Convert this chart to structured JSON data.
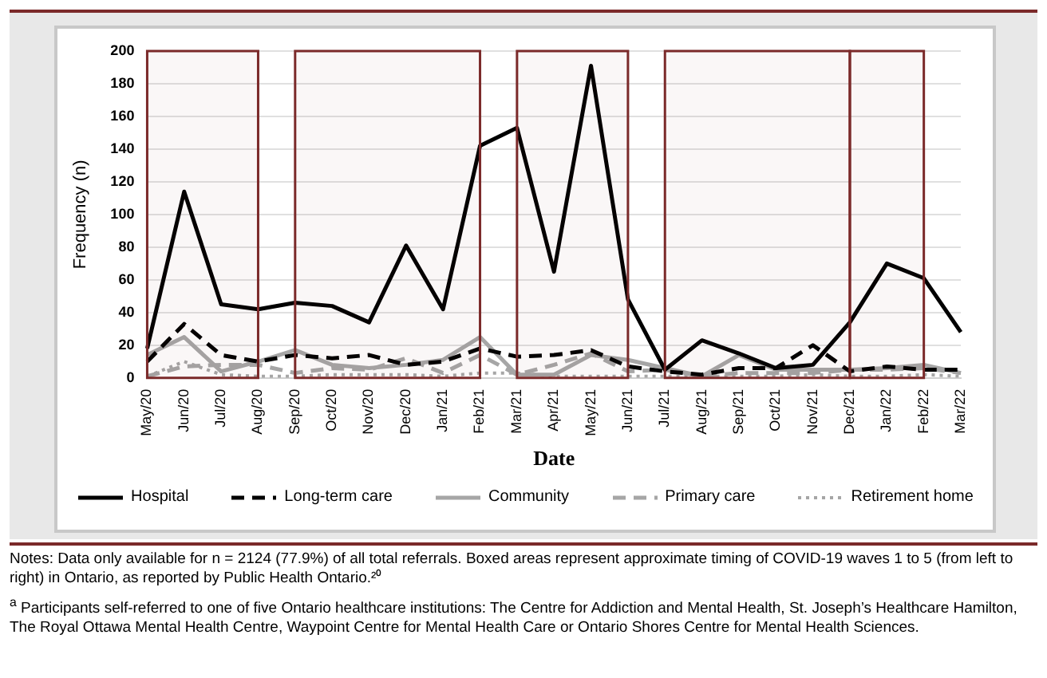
{
  "chart_data": {
    "type": "line",
    "xlabel": "Date",
    "ylabel": "Frequency (n)",
    "categories": [
      "May/20",
      "Jun/20",
      "Jul/20",
      "Aug/20",
      "Sep/20",
      "Oct/20",
      "Nov/20",
      "Dec/20",
      "Jan/21",
      "Feb/21",
      "Mar/21",
      "Apr/21",
      "May/21",
      "Jun/21",
      "Jul/21",
      "Aug/21",
      "Sep/21",
      "Oct/21",
      "Nov/21",
      "Dec/21",
      "Jan/22",
      "Feb/22",
      "Mar/22"
    ],
    "series": [
      {
        "name": "Hospital",
        "color": "#000000",
        "line_style": "solid",
        "values": [
          18,
          114,
          45,
          42,
          46,
          44,
          34,
          81,
          42,
          142,
          153,
          65,
          191,
          48,
          5,
          23,
          15,
          6,
          8,
          34,
          70,
          61,
          28
        ]
      },
      {
        "name": "Long-term care",
        "color": "#000000",
        "line_style": "dashed",
        "values": [
          10,
          33,
          14,
          10,
          14,
          12,
          14,
          8,
          10,
          18,
          13,
          14,
          17,
          7,
          4,
          2,
          6,
          6,
          20,
          4,
          7,
          5,
          5
        ]
      },
      {
        "name": "Community",
        "color": "#a6a6a6",
        "line_style": "solid",
        "values": [
          14,
          25,
          4,
          10,
          17,
          8,
          6,
          8,
          11,
          25,
          2,
          2,
          14,
          11,
          6,
          1,
          14,
          5,
          5,
          5,
          6,
          8,
          3
        ]
      },
      {
        "name": "Primary care",
        "color": "#a6a6a6",
        "line_style": "dashed",
        "values": [
          1,
          7,
          8,
          8,
          3,
          6,
          5,
          12,
          3,
          14,
          2,
          8,
          15,
          4,
          5,
          1,
          3,
          3,
          3,
          5,
          5,
          6,
          3
        ]
      },
      {
        "name": "Retirement home",
        "color": "#a6a6a6",
        "line_style": "dotted",
        "values": [
          1,
          10,
          2,
          1,
          1,
          2,
          2,
          2,
          1,
          3,
          3,
          1,
          1,
          1,
          1,
          1,
          1,
          1,
          2,
          1,
          1,
          2,
          1
        ]
      }
    ],
    "ylim": [
      0,
      200
    ],
    "yticks": [
      0,
      20,
      40,
      60,
      80,
      100,
      120,
      140,
      160,
      180,
      200
    ],
    "grid": "y",
    "legend": "bottom",
    "marker": "none",
    "bands": [
      {
        "axis": "x",
        "from": "May/20",
        "to": "Aug/20",
        "color": "#7b2a2a"
      },
      {
        "axis": "x",
        "from": "Sep/20",
        "to": "Feb/21",
        "color": "#7b2a2a"
      },
      {
        "axis": "x",
        "from": "Mar/21",
        "to": "Jun/21",
        "color": "#7b2a2a"
      },
      {
        "axis": "x",
        "from": "Jul/21",
        "to": "Dec/21",
        "color": "#7b2a2a"
      },
      {
        "axis": "x",
        "from": "Dec/21",
        "to": "Feb/22",
        "color": "#7b2a2a"
      }
    ],
    "annotations": [
      "Notes: Data only available for n = 2124 (77.9%) of all total referrals. Boxed areas represent approximate timing of COVID-19 waves 1 to 5 (from left to right) in Ontario, as reported by Public Health Ontario.²⁰",
      "$^{a}$ Participants self-referred to one of five Ontario healthcare institutions: The Centre for Addiction and Mental Health, St. Joseph’s Healthcare Hamilton, The Royal Ottawa Mental Health Centre, Waypoint Centre for Mental Health Care or Ontario Shores Centre for Mental Health Sciences."
    ]
  }
}
